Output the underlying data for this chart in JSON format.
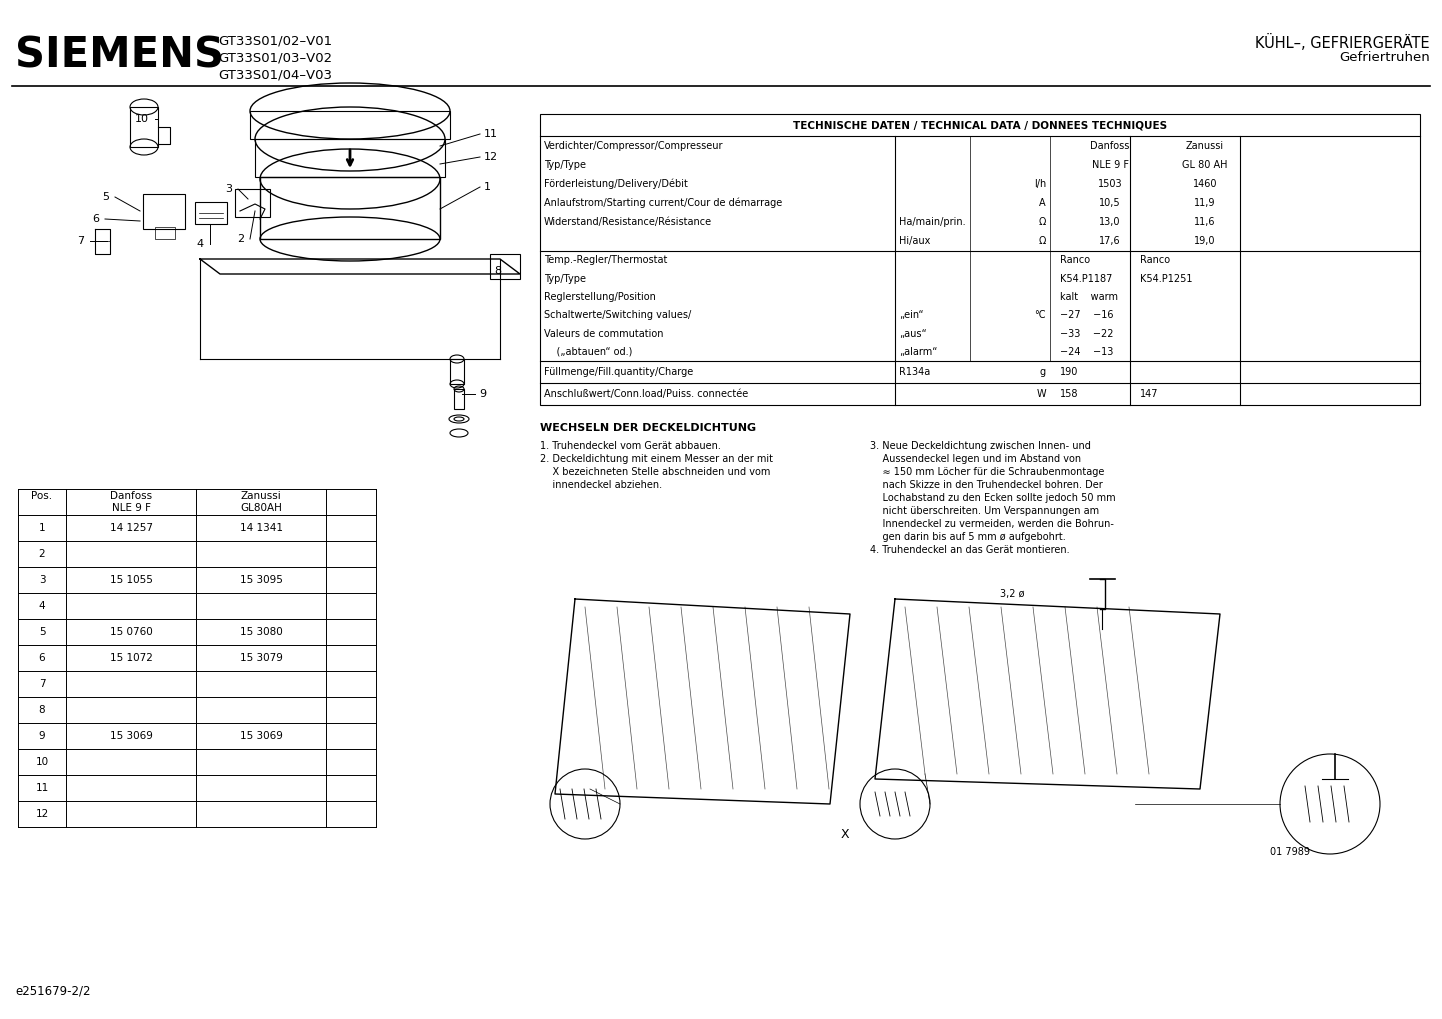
{
  "title_left": "SIEMENS",
  "model_lines": [
    "GT33S01/02–V01",
    "GT33S01/03–V02",
    "GT33S01/04–V03"
  ],
  "title_right_line1": "KÜHL–, GEFRIERGERÄTE",
  "title_right_line2": "Gefriertruhen",
  "footer": "e251679-2/2",
  "tech_title": "TECHNISCHE DATEN / TECHNICAL DATA / DONNEES TECHNIQUES",
  "wechsel_title": "WECHSELN DER DECKELDICHTUNG",
  "wechsel_step1": "1. Truhendeckel vom Gerät abbauen.",
  "wechsel_step2a": "2. Deckeldichtung mit einem Messer an der mit",
  "wechsel_step2b": "    X bezeichneten Stelle abschneiden und vom",
  "wechsel_step2c": "    innendeckel abziehen.",
  "wechsel_step3a": "3. Neue Deckeldichtung zwischen Innen- und",
  "wechsel_step3b": "    Aussendeckel legen und im Abstand von",
  "wechsel_step3c": "    ≈ 150 mm Löcher für die Schraubenmontage",
  "wechsel_step3d": "    nach Skizze in den Truhendeckel bohren. Der",
  "wechsel_step3e": "    Lochabstand zu den Ecken sollte jedoch 50 mm",
  "wechsel_step3f": "    nicht überschreiten. Um Verspannungen am",
  "wechsel_step3g": "    Innendeckel zu vermeiden, werden die Bohrun-",
  "wechsel_step3h": "    gen darin bis auf 5 mm ø aufgebohrt.",
  "wechsel_step4": "4. Truhendeckel an das Gerät montieren.",
  "parts_rows": [
    [
      "1",
      "14 1257",
      "14 1341"
    ],
    [
      "2",
      "",
      ""
    ],
    [
      "3",
      "15 1055",
      "15 3095"
    ],
    [
      "4",
      "",
      ""
    ],
    [
      "5",
      "15 0760",
      "15 3080"
    ],
    [
      "6",
      "15 1072",
      "15 3079"
    ],
    [
      "7",
      "",
      ""
    ],
    [
      "8",
      "",
      ""
    ],
    [
      "9",
      "15 3069",
      "15 3069"
    ],
    [
      "10",
      "",
      ""
    ],
    [
      "11",
      "",
      ""
    ],
    [
      "12",
      "",
      ""
    ]
  ],
  "s1_rows": [
    [
      "Verdichter/Compressor/Compresseur",
      "",
      "",
      "Danfoss",
      "Zanussi"
    ],
    [
      "Typ/Type",
      "",
      "",
      "NLE 9 F",
      "GL 80 AH"
    ],
    [
      "Förderleistung/Delivery/Débit",
      "",
      "l/h",
      "1503",
      "1460"
    ],
    [
      "Anlaufstrom/Starting current/Cour de démarrage",
      "",
      "A",
      "10,5",
      "11,9"
    ],
    [
      "Widerstand/Resistance/Résistance",
      "Ha/main/prin.",
      "Ω",
      "13,0",
      "11,6"
    ],
    [
      "",
      "Hi/aux",
      "Ω",
      "17,6",
      "19,0"
    ]
  ],
  "s2_rows": [
    [
      "Temp.-Regler/Thermostat",
      "",
      "",
      "Ranco",
      "Ranco"
    ],
    [
      "Typ/Type",
      "",
      "",
      "K54.P1187",
      "K54.P1251"
    ],
    [
      "Reglerstellung/Position",
      "",
      "",
      "kalt    warm",
      ""
    ],
    [
      "Schaltwerte/Switching values/",
      "„ein“",
      "°C",
      "−27    −16",
      ""
    ],
    [
      "Valeurs de commutation",
      "„aus“",
      "",
      "−33    −22",
      ""
    ],
    [
      "    („abtauen“ od.)",
      "„alarm“",
      "",
      "−24    −13",
      ""
    ]
  ],
  "fill_row": [
    "Füllmenge/Fill.quantity/Charge",
    "R134a",
    "g",
    "190",
    ""
  ],
  "anschluss_row": [
    "Anschlußwert/Conn.load/Puiss. connectée",
    "",
    "W",
    "158",
    "147"
  ],
  "bg_color": "#ffffff",
  "text_color": "#000000"
}
